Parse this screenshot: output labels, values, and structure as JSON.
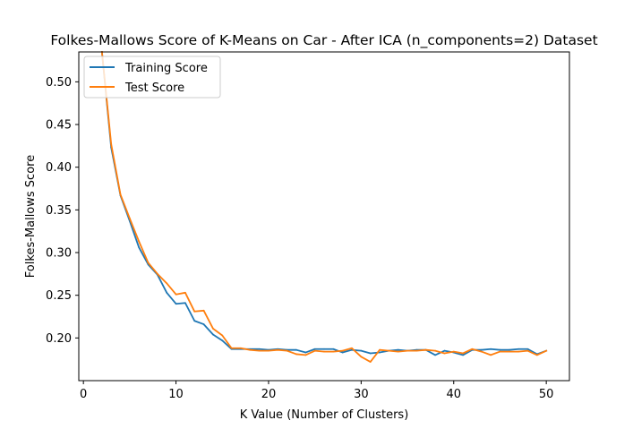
{
  "chart_data": {
    "type": "line",
    "title": "Folkes-Mallows Score of K-Means on Car - After ICA (n_components=2) Dataset",
    "xlabel": "K Value (Number of Clusters)",
    "ylabel": "Folkes-Mallows Score",
    "xlim": [
      -0.5,
      52.5
    ],
    "ylim": [
      0.15,
      0.535
    ],
    "xticks": [
      0,
      10,
      20,
      30,
      40,
      50
    ],
    "yticks": [
      0.2,
      0.25,
      0.3,
      0.35,
      0.4,
      0.45,
      0.5
    ],
    "ytick_labels": [
      "0.20",
      "0.25",
      "0.30",
      "0.35",
      "0.40",
      "0.45",
      "0.50"
    ],
    "grid": false,
    "legend_position": "upper-left",
    "x": [
      2,
      3,
      4,
      5,
      6,
      7,
      8,
      9,
      10,
      11,
      12,
      13,
      14,
      15,
      16,
      17,
      18,
      19,
      20,
      21,
      22,
      23,
      24,
      25,
      26,
      27,
      28,
      29,
      30,
      31,
      32,
      33,
      34,
      35,
      36,
      37,
      38,
      39,
      40,
      41,
      42,
      43,
      44,
      45,
      46,
      47,
      48,
      49,
      50
    ],
    "series": [
      {
        "name": "Training Score",
        "color": "#1f77b4",
        "values": [
          0.535,
          0.423,
          0.367,
          0.337,
          0.306,
          0.286,
          0.274,
          0.253,
          0.24,
          0.241,
          0.22,
          0.216,
          0.204,
          0.197,
          0.187,
          0.187,
          0.187,
          0.187,
          0.186,
          0.187,
          0.186,
          0.186,
          0.183,
          0.187,
          0.187,
          0.187,
          0.183,
          0.186,
          0.185,
          0.182,
          0.183,
          0.185,
          0.186,
          0.185,
          0.186,
          0.186,
          0.18,
          0.185,
          0.183,
          0.18,
          0.186,
          0.186,
          0.187,
          0.186,
          0.186,
          0.187,
          0.187,
          0.181,
          0.185
        ]
      },
      {
        "name": "Test Score",
        "color": "#ff7f0e",
        "values": [
          0.535,
          0.427,
          0.368,
          0.34,
          0.313,
          0.288,
          0.275,
          0.264,
          0.251,
          0.253,
          0.231,
          0.232,
          0.211,
          0.203,
          0.188,
          0.188,
          0.186,
          0.185,
          0.185,
          0.186,
          0.185,
          0.181,
          0.18,
          0.185,
          0.184,
          0.184,
          0.185,
          0.188,
          0.178,
          0.172,
          0.186,
          0.185,
          0.184,
          0.185,
          0.185,
          0.186,
          0.185,
          0.182,
          0.184,
          0.182,
          0.187,
          0.184,
          0.18,
          0.184,
          0.184,
          0.184,
          0.185,
          0.18,
          0.185
        ]
      }
    ]
  }
}
